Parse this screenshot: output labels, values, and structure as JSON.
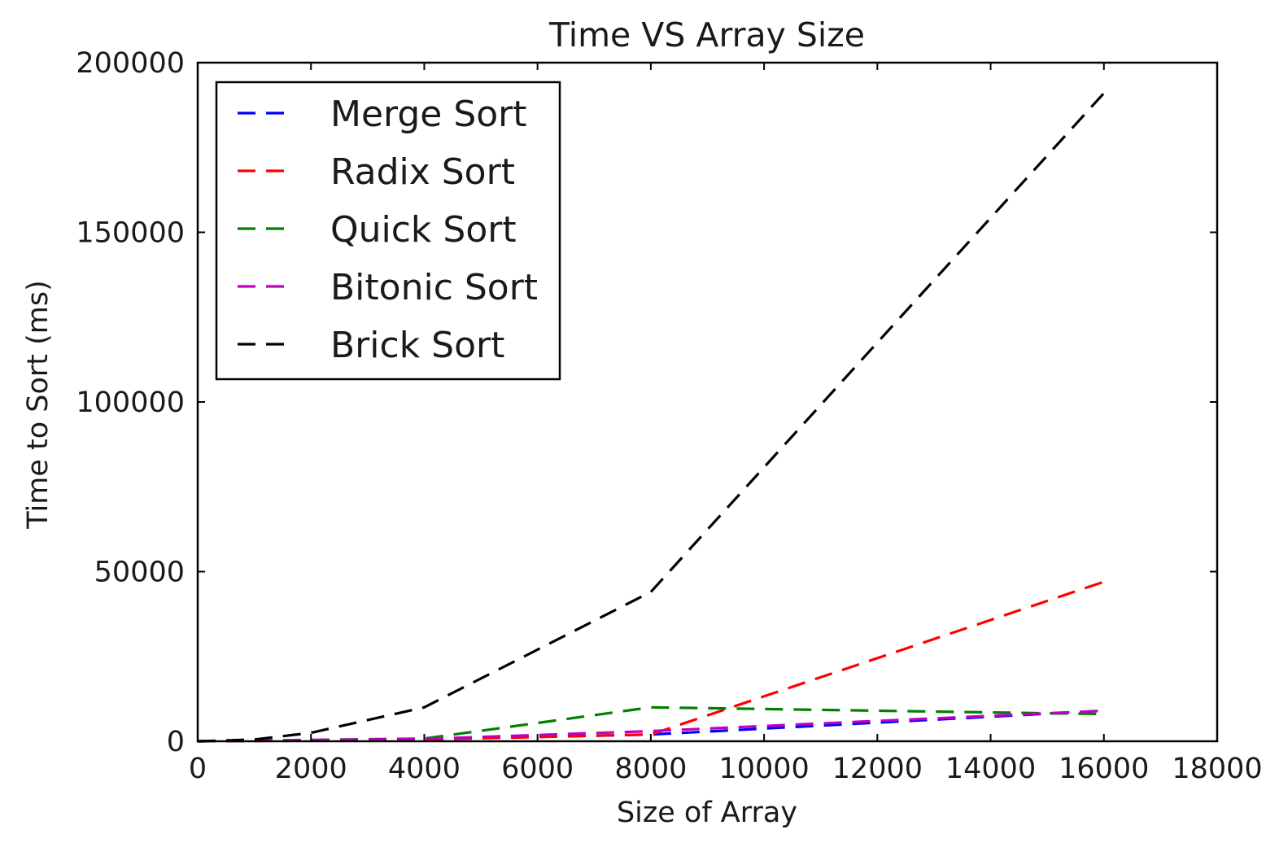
{
  "chart_data": {
    "type": "line",
    "title": "Time VS Array Size",
    "xlabel": "Size of Array",
    "ylabel": "Time to Sort (ms)",
    "xlim": [
      0,
      18000
    ],
    "ylim": [
      0,
      200000
    ],
    "xticks": [
      "0",
      "2000",
      "4000",
      "6000",
      "8000",
      "10000",
      "12000",
      "14000",
      "16000",
      "18000"
    ],
    "yticks": [
      "0",
      "50000",
      "100000",
      "150000",
      "200000"
    ],
    "x": [
      0,
      1000,
      2000,
      4000,
      8000,
      16000
    ],
    "grid": false,
    "legend_position": "upper-left",
    "line_style": "dashed",
    "series": [
      {
        "name": "Merge Sort",
        "color": "#0000ff",
        "values": [
          0,
          150,
          300,
          600,
          2000,
          9000
        ]
      },
      {
        "name": "Radix Sort",
        "color": "#ff0000",
        "values": [
          0,
          100,
          250,
          500,
          2000,
          47000
        ]
      },
      {
        "name": "Quick Sort",
        "color": "#008000",
        "values": [
          0,
          200,
          400,
          800,
          10000,
          8000
        ]
      },
      {
        "name": "Bitonic Sort",
        "color": "#bf00bf",
        "values": [
          0,
          150,
          350,
          700,
          3000,
          9000
        ]
      },
      {
        "name": "Brick Sort",
        "color": "#000000",
        "values": [
          0,
          500,
          2500,
          10000,
          44000,
          191000
        ]
      }
    ]
  }
}
